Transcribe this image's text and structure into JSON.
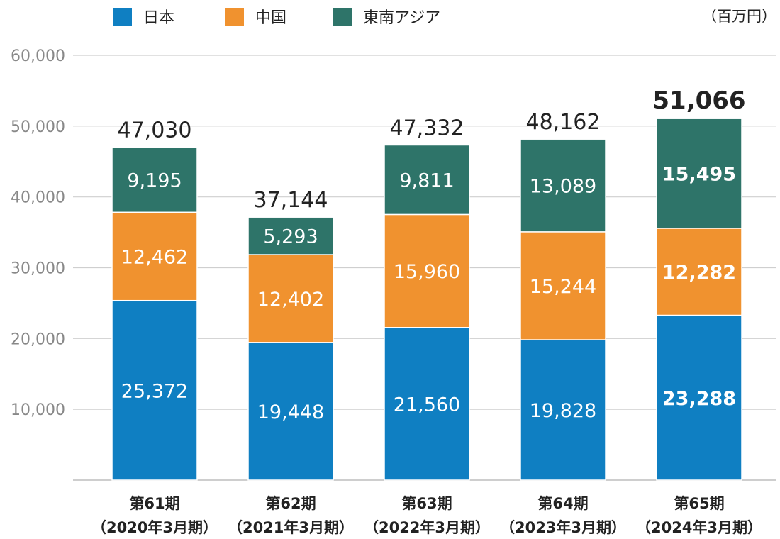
{
  "unit": "（百万円）",
  "chart_data": {
    "type": "bar",
    "stacked": true,
    "categories": [
      [
        "第61期",
        "（2020年3月期）"
      ],
      [
        "第62期",
        "（2021年3月期）"
      ],
      [
        "第63期",
        "（2022年3月期）"
      ],
      [
        "第64期",
        "（2023年3月期）"
      ],
      [
        "第65期",
        "（2024年3月期）"
      ]
    ],
    "series": [
      {
        "name": "日本",
        "color": "#0f7fc2",
        "values": [
          25372,
          19448,
          21560,
          19828,
          23288
        ]
      },
      {
        "name": "中国",
        "color": "#f0922f",
        "values": [
          12462,
          12402,
          15960,
          15244,
          12282
        ]
      },
      {
        "name": "東南アジア",
        "color": "#2e7469",
        "values": [
          9195,
          5293,
          9811,
          13089,
          15495
        ]
      }
    ],
    "value_labels": [
      [
        "25,372",
        "19,448",
        "21,560",
        "19,828",
        "23,288"
      ],
      [
        "12,462",
        "12,402",
        "15,960",
        "15,244",
        "12,282"
      ],
      [
        "9,195",
        "5,293",
        "9,811",
        "13,089",
        "15,495"
      ]
    ],
    "totals": [
      "47,030",
      "37,144",
      "47,332",
      "48,162",
      "51,066"
    ],
    "highlight_index": 4,
    "ylim": [
      0,
      60000
    ],
    "yticks": [
      10000,
      20000,
      30000,
      40000,
      50000,
      60000
    ],
    "ytick_labels": [
      "10,000",
      "20,000",
      "30,000",
      "40,000",
      "50,000",
      "60,000"
    ],
    "grid": true,
    "legend_position": "top-left"
  }
}
